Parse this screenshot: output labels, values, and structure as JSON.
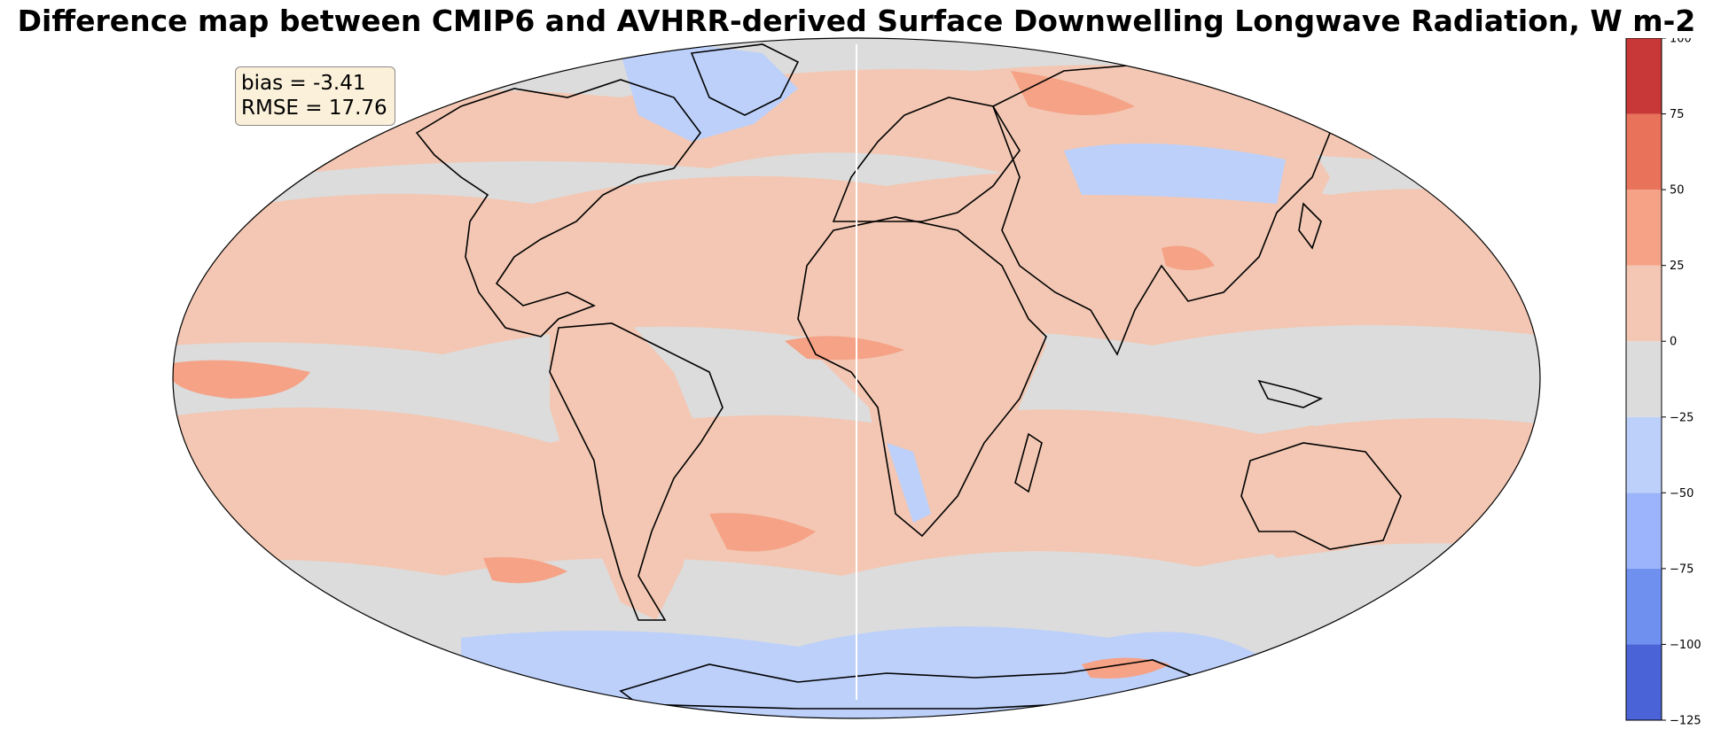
{
  "title": "Difference map between CMIP6 and AVHRR-derived Surface Downwelling Longwave Radiation, W m-2",
  "stats": {
    "bias_label": "bias = -3.41",
    "rmse_label": "RMSE = 17.76"
  },
  "colorbar": {
    "min": -125,
    "max": 100,
    "levels": [
      -125,
      -100,
      -75,
      -50,
      -25,
      0,
      25,
      50,
      75,
      100
    ],
    "colors": [
      "#4a64d8",
      "#7090f0",
      "#9bb4fb",
      "#bcd0fa",
      "#dcdcdc",
      "#f3c7b3",
      "#f5a286",
      "#e8735a",
      "#c93838"
    ],
    "tick_labels": [
      "−125",
      "−100",
      "−75",
      "−50",
      "−25",
      "0",
      "25",
      "50",
      "75",
      "100"
    ]
  },
  "map": {
    "projection": "mollweide",
    "ocean_base_color": "#dcdcdc",
    "coastline_color": "#000000"
  }
}
